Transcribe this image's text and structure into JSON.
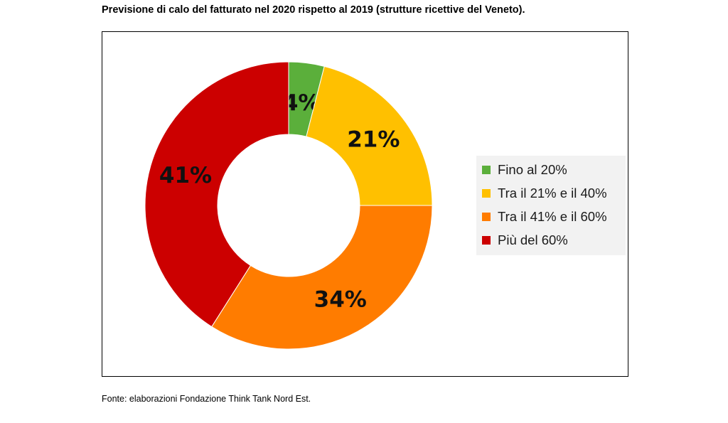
{
  "title": "Previsione di calo del fatturato nel 2020 rispetto al 2019 (strutture ricettive del Veneto).",
  "source": "Fonte: elaborazioni Fondazione Think Tank Nord Est.",
  "chart_data": {
    "type": "pie",
    "variant": "donut",
    "title": "Previsione di calo del fatturato nel 2020 rispetto al 2019 (strutture ricettive del Veneto).",
    "categories": [
      "Fino al 20%",
      "Tra il 21% e il 40%",
      "Tra il 41% e il 60%",
      "Più del 60%"
    ],
    "values": [
      4,
      21,
      34,
      41
    ],
    "labels": [
      "4%",
      "21%",
      "34%",
      "41%"
    ],
    "colors": [
      "#5BAF3B",
      "#FFC000",
      "#FF7C00",
      "#CC0000"
    ],
    "legend_position": "right",
    "start_angle": "12 o'clock, clockwise"
  }
}
